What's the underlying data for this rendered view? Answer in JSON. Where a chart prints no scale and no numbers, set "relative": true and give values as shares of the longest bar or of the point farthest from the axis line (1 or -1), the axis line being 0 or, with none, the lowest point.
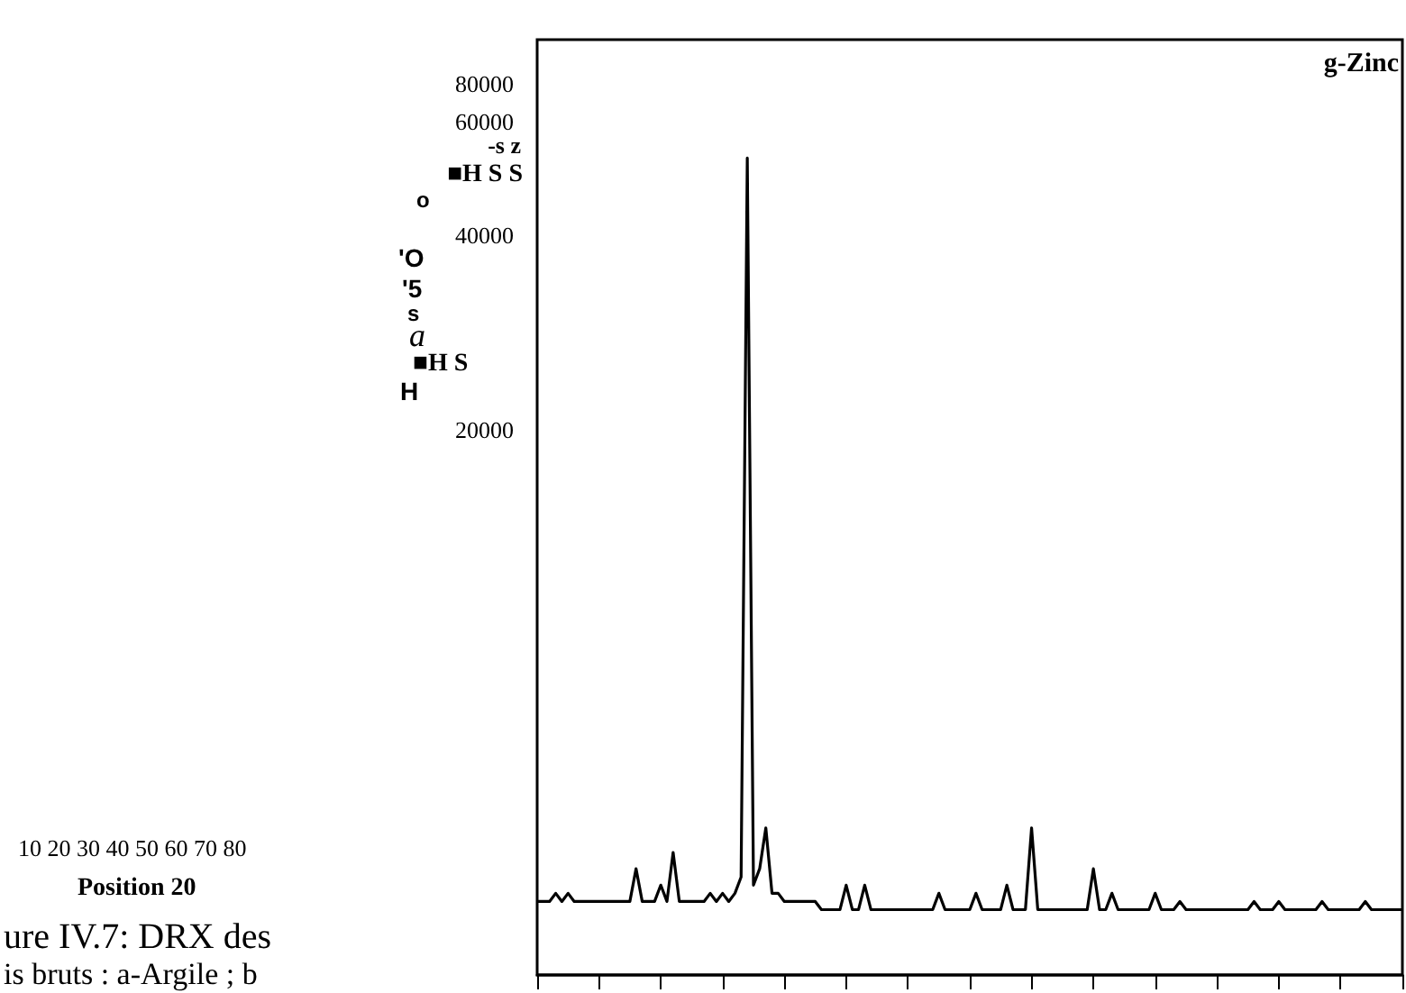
{
  "chart_data": {
    "type": "line",
    "relative": true,
    "annotations": [
      "80000",
      "60000",
      "-s z",
      "■H S S",
      "o",
      "40000",
      "'O",
      "'5",
      "s",
      "a",
      "■H S",
      "H",
      "20000",
      "10 20 30 40 50 60 70 80",
      "g-Zinc",
      "ure IV.7: DRX des",
      "is bruts : a-Argile ; b",
      "Position 20"
    ],
    "categories": [
      null,
      null,
      null,
      null,
      null,
      null,
      null,
      null,
      null,
      null,
      null,
      null,
      null,
      null,
      null,
      null,
      null,
      null,
      null,
      null,
      null,
      null,
      null,
      null,
      null,
      null,
      null,
      null,
      null,
      null,
      null,
      null,
      null,
      null,
      null,
      null,
      null,
      null,
      null,
      null,
      null,
      null,
      null,
      null,
      null,
      null,
      null,
      null,
      null,
      null,
      null,
      null,
      null,
      null,
      null,
      null,
      null,
      null,
      null,
      null,
      null,
      null,
      null,
      null,
      null,
      null,
      null,
      null,
      null,
      null,
      null,
      null,
      null,
      null,
      null,
      null,
      null,
      null,
      null,
      null,
      null,
      null,
      null,
      null,
      null,
      null,
      null,
      null,
      null,
      null,
      null,
      null,
      null,
      null,
      null,
      null,
      null,
      null,
      null,
      null,
      null,
      null,
      null,
      null,
      null,
      null,
      null,
      null,
      null,
      null,
      null,
      null,
      null,
      null,
      null,
      null,
      null,
      null,
      null,
      null,
      null,
      null,
      null,
      null,
      null,
      null,
      null,
      null,
      null,
      null,
      null,
      null,
      null,
      null,
      null,
      null,
      null,
      null,
      null,
      null,
      null
    ],
    "series": [
      {
        "color": "#000000",
        "values": [
          0.09,
          0.09,
          0.09,
          0.1,
          0.09,
          0.1,
          0.09,
          0.09,
          0.09,
          0.09,
          0.09,
          0.09,
          0.09,
          0.09,
          0.09,
          0.09,
          0.13,
          0.09,
          0.09,
          0.09,
          0.11,
          0.09,
          0.15,
          0.09,
          0.09,
          0.09,
          0.09,
          0.09,
          0.1,
          0.09,
          0.1,
          0.09,
          0.1,
          0.12,
          1,
          0.11,
          0.13,
          0.18,
          0.1,
          0.1,
          0.09,
          0.09,
          0.09,
          0.09,
          0.09,
          0.09,
          0.08,
          0.08,
          0.08,
          0.08,
          0.11,
          0.08,
          0.08,
          0.11,
          0.08,
          0.08,
          0.08,
          0.08,
          0.08,
          0.08,
          0.08,
          0.08,
          0.08,
          0.08,
          0.08,
          0.1,
          0.08,
          0.08,
          0.08,
          0.08,
          0.08,
          0.1,
          0.08,
          0.08,
          0.08,
          0.08,
          0.11,
          0.08,
          0.08,
          0.08,
          0.18,
          0.08,
          0.08,
          0.08,
          0.08,
          0.08,
          0.08,
          0.08,
          0.08,
          0.08,
          0.13,
          0.08,
          0.08,
          0.1,
          0.08,
          0.08,
          0.08,
          0.08,
          0.08,
          0.08,
          0.1,
          0.08,
          0.08,
          0.08,
          0.09,
          0.08,
          0.08,
          0.08,
          0.08,
          0.08,
          0.08,
          0.08,
          0.08,
          0.08,
          0.08,
          0.08,
          0.09,
          0.08,
          0.08,
          0.08,
          0.09,
          0.08,
          0.08,
          0.08,
          0.08,
          0.08,
          0.08,
          0.09,
          0.08,
          0.08,
          0.08,
          0.08,
          0.08,
          0.08,
          0.09,
          0.08,
          0.08,
          0.08,
          0.08,
          0.08,
          0.08
        ]
      }
    ]
  }
}
